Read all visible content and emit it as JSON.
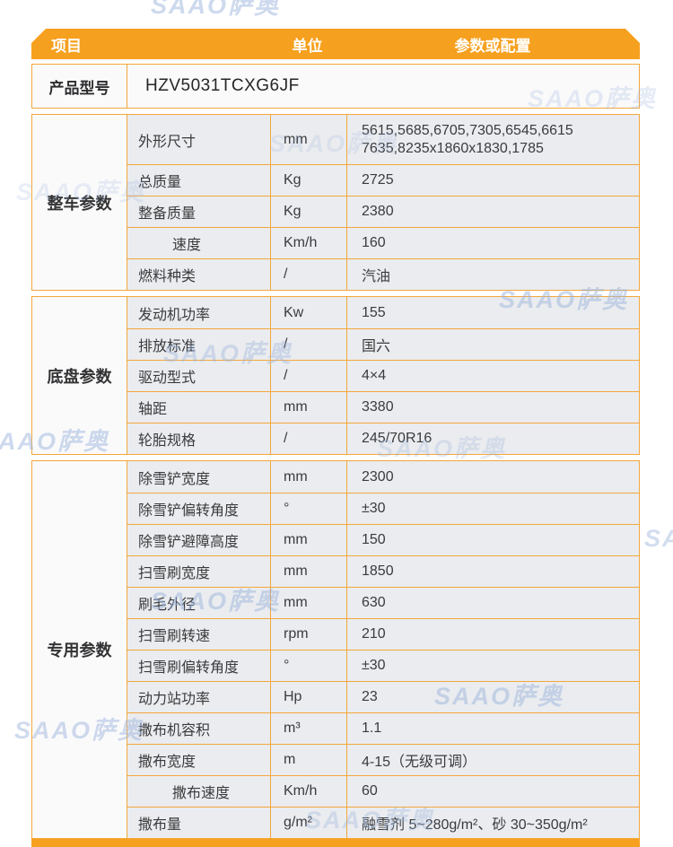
{
  "header": {
    "col_item": "项目",
    "col_unit": "单位",
    "col_value": "参数或配置"
  },
  "product_row": {
    "label": "产品型号",
    "value": "HZV5031TCXG6JF"
  },
  "sections": [
    {
      "group": "整车参数",
      "rows": [
        {
          "name": "外形尺寸",
          "unit": "mm",
          "value": "5615,5685,6705,7305,6545,6615\n7635,8235x1860x1830,1785",
          "tall": true
        },
        {
          "name": "总质量",
          "unit": "Kg",
          "value": "2725"
        },
        {
          "name": "整备质量",
          "unit": "Kg",
          "value": "2380"
        },
        {
          "name": "速度",
          "unit": "Km/h",
          "value": "160",
          "indent": true
        },
        {
          "name": "燃料种类",
          "unit": "/",
          "value": "汽油"
        }
      ]
    },
    {
      "group": "底盘参数",
      "rows": [
        {
          "name": "发动机功率",
          "unit": "Kw",
          "value": "155"
        },
        {
          "name": "排放标准",
          "unit": "/",
          "value": "国六"
        },
        {
          "name": "驱动型式",
          "unit": "/",
          "value": "4×4"
        },
        {
          "name": "轴距",
          "unit": "mm",
          "value": "3380"
        },
        {
          "name": "轮胎规格",
          "unit": "/",
          "value": "245/70R16"
        }
      ]
    },
    {
      "group": "专用参数",
      "rows": [
        {
          "name": "除雪铲宽度",
          "unit": "mm",
          "value": "2300"
        },
        {
          "name": "除雪铲偏转角度",
          "unit": "°",
          "value": "±30"
        },
        {
          "name": "除雪铲避障高度",
          "unit": "mm",
          "value": "150"
        },
        {
          "name": "扫雪刷宽度",
          "unit": "mm",
          "value": "1850"
        },
        {
          "name": "刷毛外径",
          "unit": "mm",
          "value": "630"
        },
        {
          "name": "扫雪刷转速",
          "unit": "rpm",
          "value": "210"
        },
        {
          "name": "扫雪刷偏转角度",
          "unit": "°",
          "value": "±30"
        },
        {
          "name": "动力站功率",
          "unit": "Hp",
          "value": "23"
        },
        {
          "name": "撒布机容积",
          "unit": "m³",
          "value": "1.1"
        },
        {
          "name": "撒布宽度",
          "unit": "m",
          "value": "4-15（无级可调）"
        },
        {
          "name": "撒布速度",
          "unit": "Km/h",
          "value": "60",
          "indent": true
        },
        {
          "name": "撒布量",
          "unit": "g/m²",
          "value": "融雪剂 5~280g/m²、砂 30~350g/m²"
        }
      ]
    }
  ],
  "watermark": {
    "text": "SAAO萨奥",
    "color": "#9DB5DD"
  },
  "colors": {
    "accent_orange": "#F6A01F",
    "border_orange": "#F3A73C",
    "row_gray": "#EAECEF"
  }
}
